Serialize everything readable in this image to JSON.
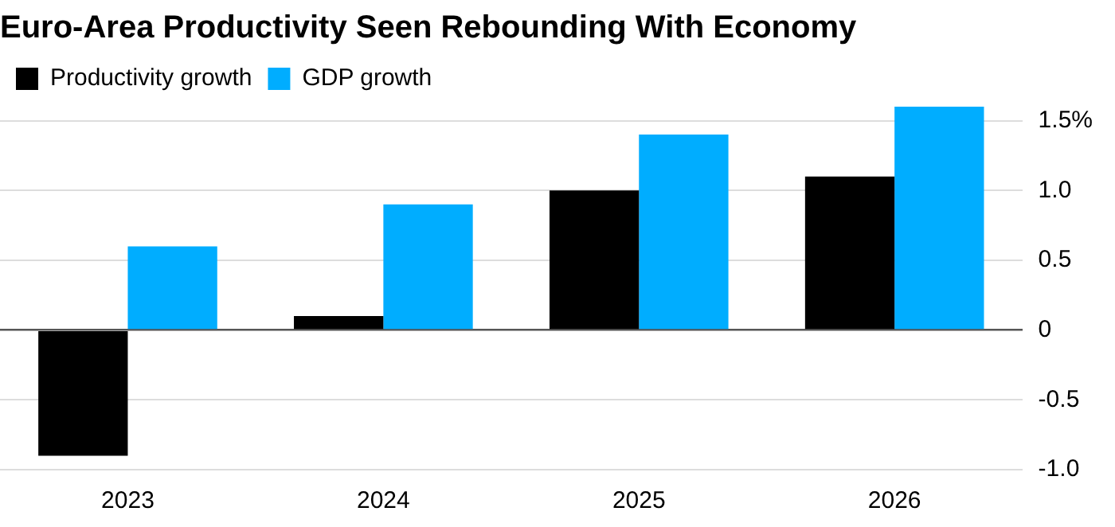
{
  "chart_data": {
    "type": "bar",
    "title": "Euro-Area Productivity Seen Rebounding With Economy",
    "categories": [
      "2023",
      "2024",
      "2025",
      "2026"
    ],
    "series": [
      {
        "name": "Productivity growth",
        "color": "#000000",
        "values": [
          -0.9,
          0.1,
          1.0,
          1.1
        ]
      },
      {
        "name": "GDP growth",
        "color": "#00adff",
        "values": [
          0.6,
          0.9,
          1.4,
          1.6
        ]
      }
    ],
    "ylim": [
      -1.0,
      1.6
    ],
    "yticks": [
      {
        "value": -1.0,
        "label": "-1.0"
      },
      {
        "value": -0.5,
        "label": "-0.5"
      },
      {
        "value": 0,
        "label": "0"
      },
      {
        "value": 0.5,
        "label": "0.5"
      },
      {
        "value": 1.0,
        "label": "1.0"
      },
      {
        "value": 1.5,
        "label": "1.5%"
      }
    ],
    "grid": "y",
    "legend": "top left"
  }
}
